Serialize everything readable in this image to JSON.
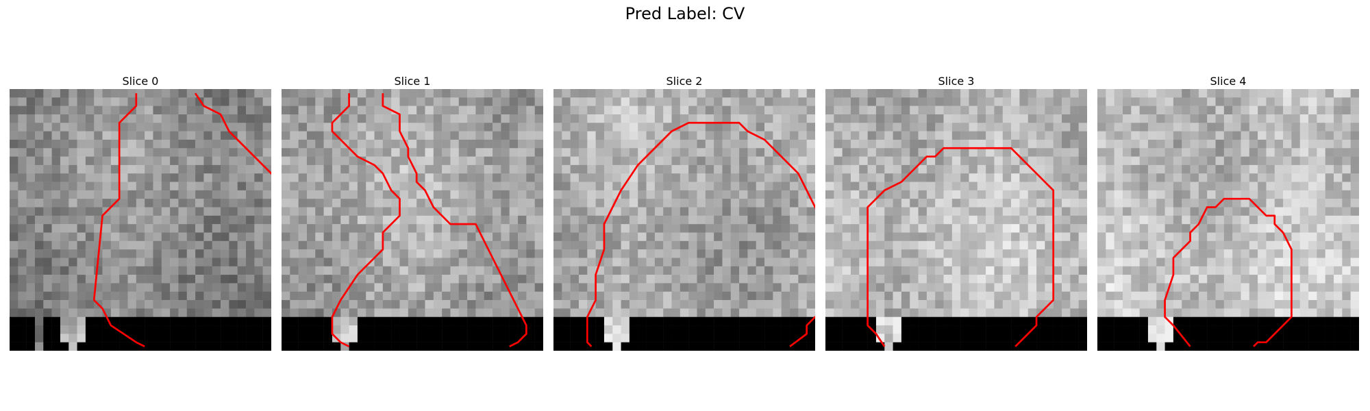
{
  "figure": {
    "title": "Pred Label: CV"
  },
  "panels": [
    {
      "title": "Slice 0",
      "seed": 11,
      "base_gray": 140,
      "mask_cols": [
        0,
        1,
        2,
        4,
        5,
        6,
        7,
        8,
        9,
        10,
        11,
        12,
        13,
        14,
        15,
        16,
        17,
        18,
        19,
        20,
        21,
        22,
        23,
        24,
        25,
        26,
        27,
        28,
        29,
        30
      ],
      "contours": [
        [
          [
            15,
            0.5
          ],
          [
            15,
            2
          ],
          [
            13,
            4
          ],
          [
            13,
            13
          ],
          [
            11,
            15
          ],
          [
            10,
            25
          ],
          [
            11,
            26
          ],
          [
            12,
            28
          ],
          [
            15,
            30
          ],
          [
            16,
            30.5
          ]
        ],
        [
          [
            22,
            0.5
          ],
          [
            23,
            2
          ],
          [
            25,
            3
          ],
          [
            26,
            5
          ],
          [
            28,
            7
          ],
          [
            30,
            9
          ],
          [
            32,
            11
          ],
          [
            33,
            11
          ],
          [
            34,
            13
          ],
          [
            38,
            15
          ],
          [
            38,
            16
          ],
          [
            40,
            18
          ],
          [
            40,
            23
          ],
          [
            41,
            25
          ],
          [
            42,
            26
          ],
          [
            42,
            28
          ],
          [
            41,
            29
          ],
          [
            40,
            30
          ],
          [
            39,
            30.5
          ]
        ]
      ]
    },
    {
      "title": "Slice 1",
      "seed": 23,
      "base_gray": 165,
      "mask_cols": [
        0,
        1,
        2,
        3,
        4,
        5,
        6,
        7,
        8,
        9,
        10,
        11,
        12,
        13,
        14,
        15,
        16,
        17,
        18,
        19,
        20,
        21,
        22,
        23,
        24,
        25,
        26,
        27,
        28,
        29,
        30
      ],
      "contours": [
        [
          [
            8,
            0.5
          ],
          [
            8,
            2
          ],
          [
            6,
            4
          ],
          [
            6,
            5
          ],
          [
            7,
            6
          ],
          [
            9,
            8
          ],
          [
            11,
            9
          ],
          [
            12,
            10
          ],
          [
            13,
            12
          ],
          [
            14,
            13
          ],
          [
            14,
            15
          ],
          [
            12,
            17
          ],
          [
            12,
            19
          ],
          [
            11,
            20
          ],
          [
            9,
            22
          ],
          [
            7,
            25
          ],
          [
            6,
            27
          ],
          [
            6,
            28
          ],
          [
            6,
            29
          ],
          [
            7,
            30
          ],
          [
            8,
            30.5
          ]
        ],
        [
          [
            12,
            0.5
          ],
          [
            12,
            2
          ],
          [
            14,
            3
          ],
          [
            14,
            5
          ],
          [
            15,
            7
          ],
          [
            15,
            8
          ],
          [
            16,
            10
          ],
          [
            16,
            11
          ],
          [
            17,
            12
          ],
          [
            18,
            14
          ],
          [
            20,
            16
          ],
          [
            23,
            16
          ],
          [
            24,
            18
          ],
          [
            25,
            20
          ],
          [
            26,
            22
          ],
          [
            27,
            24
          ],
          [
            28,
            26
          ],
          [
            29,
            28
          ],
          [
            29,
            29
          ],
          [
            28,
            30
          ],
          [
            27,
            30.5
          ]
        ]
      ]
    },
    {
      "title": "Slice 2",
      "seed": 37,
      "base_gray": 170,
      "mask_cols": [
        0,
        1,
        2,
        3,
        4,
        5,
        6,
        7,
        8,
        9,
        10,
        11,
        12,
        13,
        14,
        15,
        16,
        17,
        18,
        19,
        20,
        21,
        22,
        23,
        24,
        25,
        26,
        27,
        28,
        29,
        30
      ],
      "contours": [
        [
          [
            4.5,
            30.5
          ],
          [
            4,
            30
          ],
          [
            4,
            29
          ],
          [
            4,
            27
          ],
          [
            5,
            25
          ],
          [
            5,
            22
          ],
          [
            6,
            19
          ],
          [
            6,
            16
          ],
          [
            7,
            14
          ],
          [
            8,
            12
          ],
          [
            10,
            9
          ],
          [
            12,
            7
          ],
          [
            14,
            5
          ],
          [
            16,
            4
          ],
          [
            19,
            4
          ],
          [
            22,
            4
          ],
          [
            23,
            5
          ],
          [
            25,
            6
          ],
          [
            27,
            8
          ],
          [
            29,
            10
          ],
          [
            30,
            12
          ],
          [
            31,
            14
          ],
          [
            32,
            16
          ],
          [
            32,
            19
          ],
          [
            32,
            22
          ],
          [
            32,
            25
          ],
          [
            32,
            26
          ],
          [
            31,
            27
          ],
          [
            30,
            28
          ],
          [
            30,
            29
          ],
          [
            28,
            30.5
          ]
        ]
      ]
    },
    {
      "title": "Slice 3",
      "seed": 53,
      "base_gray": 185,
      "mask_cols": [
        0,
        1,
        2,
        3,
        4,
        5,
        6,
        7,
        8,
        9,
        10,
        11,
        12,
        13,
        14,
        15,
        16,
        17,
        18,
        19,
        20,
        21,
        22,
        23,
        24,
        25,
        26,
        27,
        28,
        29,
        30
      ],
      "contours": [
        [
          [
            7,
            30.5
          ],
          [
            6,
            29
          ],
          [
            5,
            28
          ],
          [
            5,
            27
          ],
          [
            5,
            24
          ],
          [
            5,
            21
          ],
          [
            5,
            18
          ],
          [
            5,
            16
          ],
          [
            5,
            14
          ],
          [
            6,
            13
          ],
          [
            7,
            12
          ],
          [
            9,
            11
          ],
          [
            10,
            10
          ],
          [
            11,
            9
          ],
          [
            12,
            8
          ],
          [
            13,
            8
          ],
          [
            14,
            7
          ],
          [
            16,
            7
          ],
          [
            18,
            7
          ],
          [
            19,
            7
          ],
          [
            21,
            7
          ],
          [
            22,
            7
          ],
          [
            23,
            8
          ],
          [
            24,
            9
          ],
          [
            25,
            10
          ],
          [
            26,
            11
          ],
          [
            27,
            12
          ],
          [
            27,
            13
          ],
          [
            27,
            16
          ],
          [
            27,
            19
          ],
          [
            27,
            22
          ],
          [
            27,
            25
          ],
          [
            26,
            26
          ],
          [
            25,
            27
          ],
          [
            25,
            28
          ],
          [
            24,
            29
          ],
          [
            23,
            30
          ],
          [
            22.5,
            30.5
          ]
        ]
      ]
    },
    {
      "title": "Slice 4",
      "seed": 71,
      "base_gray": 190,
      "mask_cols": [
        0,
        1,
        2,
        3,
        4,
        5,
        6,
        7,
        8,
        9,
        10,
        11,
        12,
        13,
        14,
        15,
        16,
        17,
        18,
        19,
        20,
        21,
        22,
        23,
        24,
        25,
        26,
        27,
        28,
        29,
        30
      ],
      "contours": [
        [
          [
            11,
            30.5
          ],
          [
            9,
            28
          ],
          [
            8,
            27
          ],
          [
            8,
            25
          ],
          [
            9,
            22
          ],
          [
            9,
            20
          ],
          [
            10,
            19
          ],
          [
            11,
            18
          ],
          [
            11,
            17
          ],
          [
            12,
            16
          ],
          [
            13,
            14
          ],
          [
            14,
            14
          ],
          [
            15,
            13
          ],
          [
            17,
            13
          ],
          [
            18,
            13
          ],
          [
            19,
            14
          ],
          [
            20,
            15
          ],
          [
            21,
            15
          ],
          [
            21,
            16
          ],
          [
            22,
            17
          ],
          [
            23,
            19
          ],
          [
            23,
            22
          ],
          [
            23,
            25
          ],
          [
            23,
            27
          ],
          [
            22,
            28
          ],
          [
            21,
            29
          ],
          [
            20,
            30
          ],
          [
            19,
            30
          ],
          [
            18.5,
            30.5
          ]
        ]
      ]
    }
  ]
}
